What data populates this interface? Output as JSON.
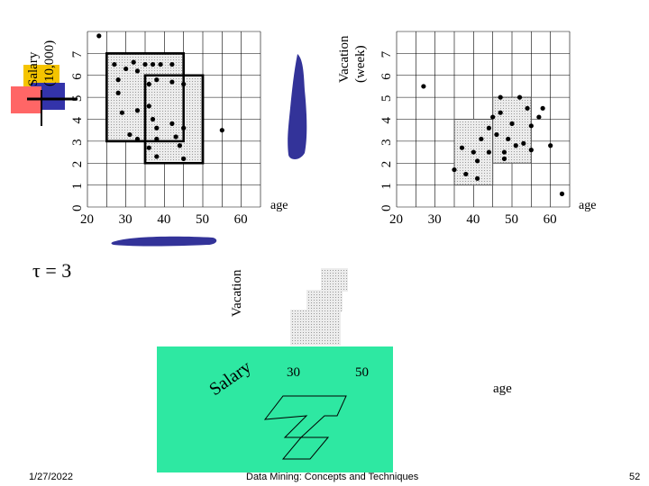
{
  "plot_left": {
    "y_axis_title": [
      "Salary",
      "(10,000)"
    ],
    "y_ticks": [
      "0",
      "1",
      "2",
      "3",
      "4",
      "5",
      "6",
      "7"
    ],
    "x_ticks": [
      "20",
      "30",
      "40",
      "50",
      "60"
    ],
    "x_label": "age"
  },
  "plot_right": {
    "y_axis_title": [
      "Vacation",
      "(week)"
    ],
    "y_ticks": [
      "0",
      "1",
      "2",
      "3",
      "4",
      "5",
      "6",
      "7"
    ],
    "x_ticks": [
      "20",
      "30",
      "40",
      "50",
      "60"
    ],
    "x_label": "age"
  },
  "tau_label": "τ = 3",
  "vacation_axis_label": "Vacation",
  "salary_axis_label": "Salary",
  "plane_ticks": [
    "30",
    "50"
  ],
  "age_axis_label": "age",
  "footer": {
    "date": "1/27/2022",
    "title": "Data Mining: Concepts and Techniques",
    "page": "52"
  },
  "colors": {
    "plane": "#2ee8a2",
    "blob": "#333399",
    "logo_yellow": "#f5c400",
    "logo_blue": "#3333aa",
    "logo_red": "#ff6666",
    "cell": "#d9d9d9"
  },
  "chart_data": [
    {
      "type": "scatter",
      "title": "",
      "xlabel": "age",
      "ylabel": "Salary (10,000)",
      "xlim": [
        20,
        65
      ],
      "ylim": [
        0,
        8
      ],
      "points": [
        [
          23,
          7.8
        ],
        [
          27,
          6.5
        ],
        [
          28,
          5.8
        ],
        [
          28,
          5.2
        ],
        [
          30,
          6.3
        ],
        [
          32,
          6.6
        ],
        [
          33,
          6.2
        ],
        [
          35,
          6.5
        ],
        [
          37,
          6.5
        ],
        [
          39,
          6.5
        ],
        [
          42,
          6.5
        ],
        [
          36,
          5.6
        ],
        [
          38,
          5.8
        ],
        [
          42,
          5.7
        ],
        [
          45,
          5.6
        ],
        [
          29,
          4.3
        ],
        [
          33,
          4.4
        ],
        [
          31,
          3.3
        ],
        [
          33,
          3.1
        ],
        [
          36,
          4.6
        ],
        [
          37,
          4.0
        ],
        [
          38,
          3.6
        ],
        [
          38,
          3.1
        ],
        [
          42,
          3.8
        ],
        [
          43,
          3.2
        ],
        [
          45,
          3.6
        ],
        [
          36,
          2.7
        ],
        [
          38,
          2.3
        ],
        [
          44,
          2.8
        ],
        [
          45,
          2.2
        ],
        [
          55,
          3.5
        ]
      ],
      "dense_units": [
        {
          "x": [
            25,
            45
          ],
          "y": [
            3,
            7
          ]
        },
        {
          "x": [
            35,
            50
          ],
          "y": [
            2,
            6
          ]
        }
      ]
    },
    {
      "type": "scatter",
      "title": "",
      "xlabel": "age",
      "ylabel": "Vacation (week)",
      "xlim": [
        20,
        65
      ],
      "ylim": [
        0,
        8
      ],
      "points": [
        [
          27,
          5.5
        ],
        [
          35,
          1.7
        ],
        [
          37,
          2.7
        ],
        [
          38,
          1.5
        ],
        [
          40,
          2.5
        ],
        [
          41,
          2.1
        ],
        [
          41,
          1.3
        ],
        [
          42,
          3.1
        ],
        [
          44,
          3.6
        ],
        [
          44,
          2.5
        ],
        [
          45,
          4.1
        ],
        [
          46,
          3.3
        ],
        [
          47,
          5.0
        ],
        [
          47,
          4.3
        ],
        [
          48,
          2.2
        ],
        [
          48,
          2.5
        ],
        [
          49,
          3.1
        ],
        [
          50,
          3.8
        ],
        [
          51,
          2.8
        ],
        [
          52,
          5.0
        ],
        [
          53,
          2.9
        ],
        [
          54,
          4.5
        ],
        [
          55,
          2.6
        ],
        [
          55,
          3.7
        ],
        [
          57,
          4.1
        ],
        [
          58,
          4.5
        ],
        [
          60,
          2.8
        ],
        [
          63,
          0.6
        ]
      ],
      "dense_units": [
        {
          "x": [
            35,
            45
          ],
          "y": [
            1,
            4
          ]
        },
        {
          "x": [
            45,
            55
          ],
          "y": [
            2,
            5
          ]
        }
      ]
    }
  ]
}
